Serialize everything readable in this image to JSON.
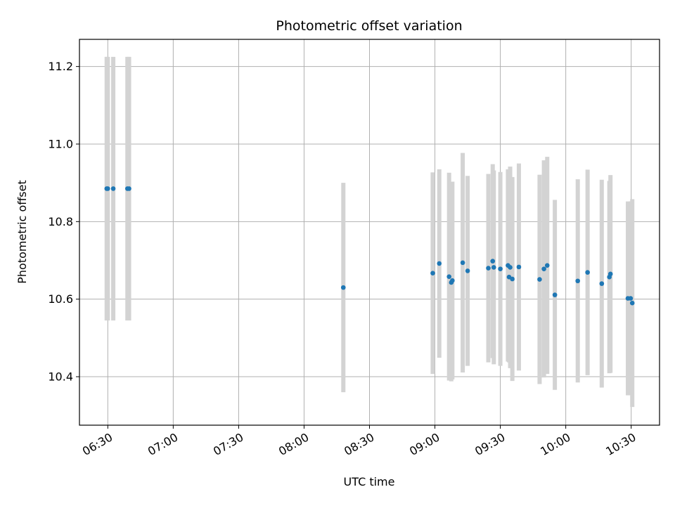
{
  "chart_data": {
    "type": "scatter",
    "title": "Photometric offset variation",
    "xlabel": "UTC time",
    "ylabel": "Photometric offset",
    "grid": true,
    "x_unit": "UTC time (HH:MM)",
    "xlim": [
      "06:17",
      "10:43"
    ],
    "ylim": [
      10.275,
      11.27
    ],
    "x_ticks": [
      "06:30",
      "07:00",
      "07:30",
      "08:00",
      "08:30",
      "09:00",
      "09:30",
      "10:00",
      "10:30"
    ],
    "y_ticks": [
      10.4,
      10.6,
      10.8,
      11.0,
      11.2
    ],
    "y_tick_labels": [
      "10.4",
      "10.6",
      "10.8",
      "11.0",
      "11.2"
    ],
    "colors": {
      "point": "#1f77b4",
      "errorbar": "#d3d3d3",
      "grid": "#b0b0b0"
    },
    "points": [
      {
        "x": "06:29:30",
        "y": 10.885,
        "err": 0.34
      },
      {
        "x": "06:30:00",
        "y": 10.885,
        "err": 0.34
      },
      {
        "x": "06:32:30",
        "y": 10.885,
        "err": 0.34
      },
      {
        "x": "06:39:00",
        "y": 10.885,
        "err": 0.34
      },
      {
        "x": "06:39:45",
        "y": 10.885,
        "err": 0.34
      },
      {
        "x": "08:18:00",
        "y": 10.63,
        "err": 0.27
      },
      {
        "x": "08:59:00",
        "y": 10.667,
        "err": 0.26
      },
      {
        "x": "09:02:00",
        "y": 10.692,
        "err": 0.243
      },
      {
        "x": "09:06:30",
        "y": 10.658,
        "err": 0.268
      },
      {
        "x": "09:07:30",
        "y": 10.643,
        "err": 0.255
      },
      {
        "x": "09:08:00",
        "y": 10.648,
        "err": 0.255
      },
      {
        "x": "09:12:45",
        "y": 10.694,
        "err": 0.283
      },
      {
        "x": "09:15:00",
        "y": 10.673,
        "err": 0.245
      },
      {
        "x": "09:24:30",
        "y": 10.68,
        "err": 0.243
      },
      {
        "x": "09:26:30",
        "y": 10.698,
        "err": 0.25
      },
      {
        "x": "09:27:00",
        "y": 10.682,
        "err": 0.25
      },
      {
        "x": "09:30:00",
        "y": 10.678,
        "err": 0.25
      },
      {
        "x": "09:33:30",
        "y": 10.687,
        "err": 0.248
      },
      {
        "x": "09:34:00",
        "y": 10.657,
        "err": 0.22
      },
      {
        "x": "09:34:30",
        "y": 10.682,
        "err": 0.26
      },
      {
        "x": "09:35:30",
        "y": 10.652,
        "err": 0.263
      },
      {
        "x": "09:38:30",
        "y": 10.683,
        "err": 0.267
      },
      {
        "x": "09:48:00",
        "y": 10.651,
        "err": 0.27
      },
      {
        "x": "09:50:00",
        "y": 10.678,
        "err": 0.28
      },
      {
        "x": "09:51:30",
        "y": 10.687,
        "err": 0.28
      },
      {
        "x": "09:55:00",
        "y": 10.611,
        "err": 0.245
      },
      {
        "x": "10:05:30",
        "y": 10.647,
        "err": 0.262
      },
      {
        "x": "10:10:00",
        "y": 10.669,
        "err": 0.265
      },
      {
        "x": "10:16:30",
        "y": 10.64,
        "err": 0.268
      },
      {
        "x": "10:20:00",
        "y": 10.657,
        "err": 0.248
      },
      {
        "x": "10:20:30",
        "y": 10.665,
        "err": 0.255
      },
      {
        "x": "10:28:30",
        "y": 10.602,
        "err": 0.25
      },
      {
        "x": "10:29:45",
        "y": 10.602,
        "err": 0.25
      },
      {
        "x": "10:30:30",
        "y": 10.59,
        "err": 0.268
      }
    ]
  }
}
